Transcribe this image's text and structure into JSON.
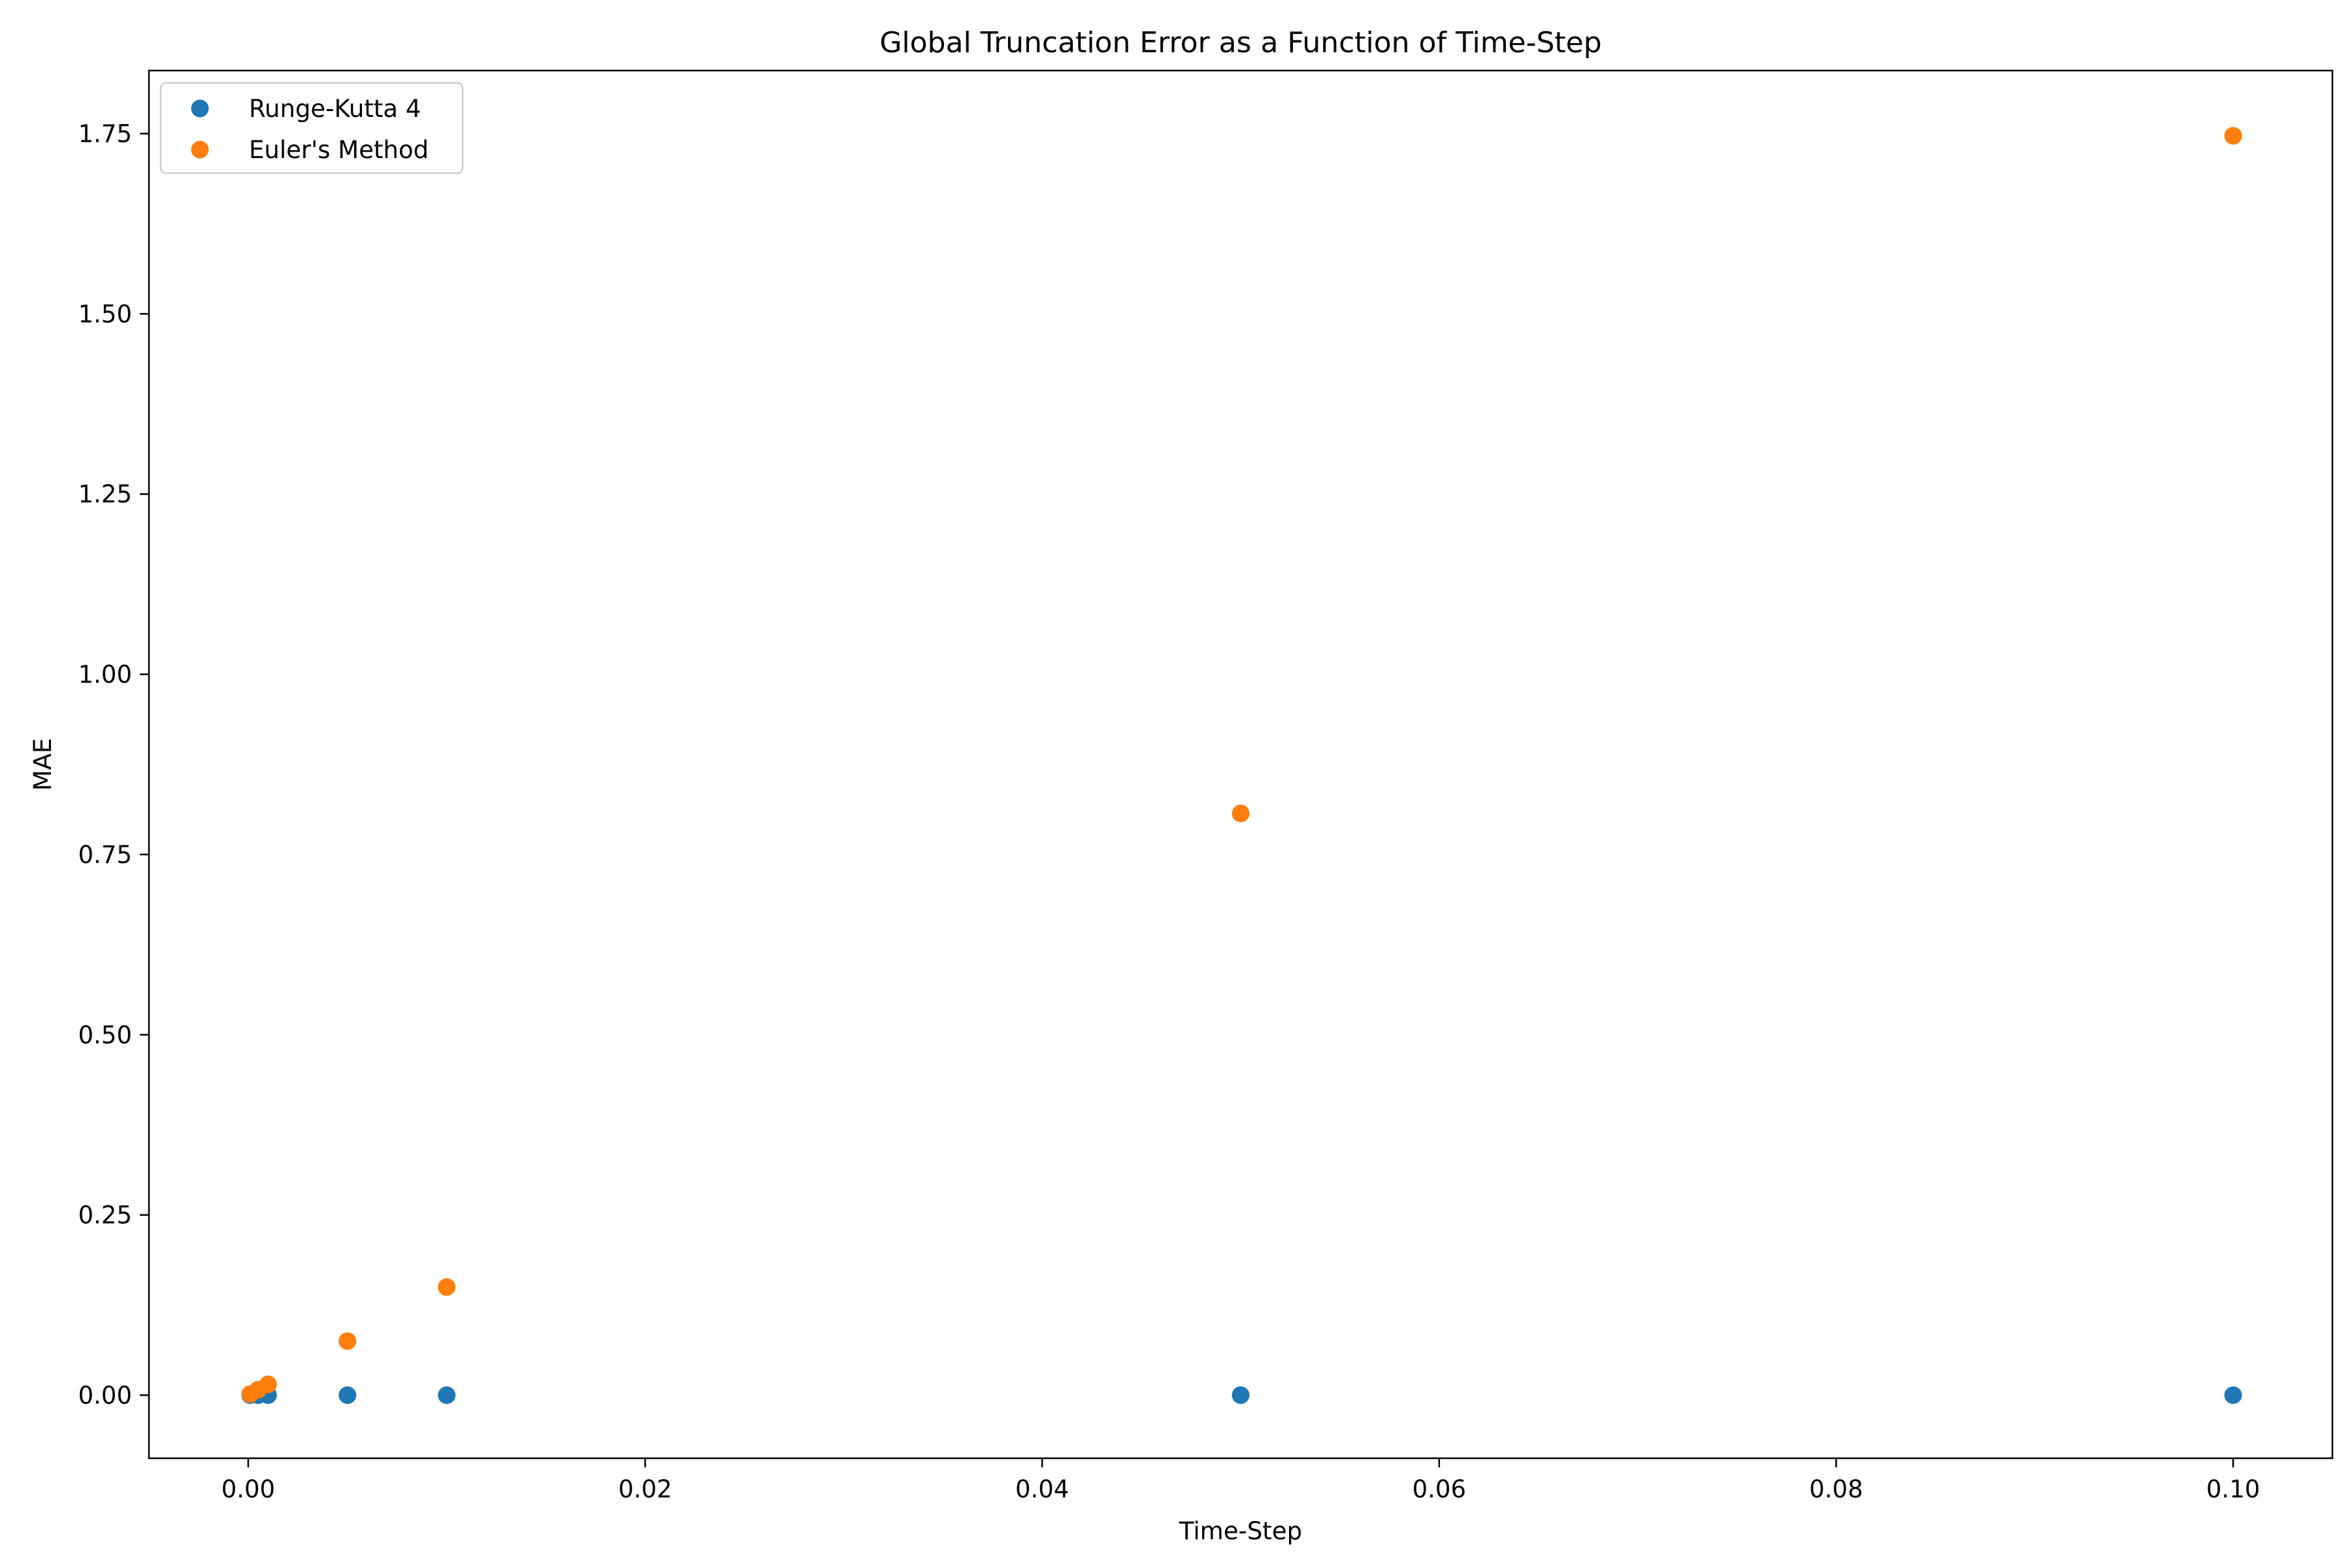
{
  "chart_data": {
    "type": "scatter",
    "title": "Global Truncation Error as a Function of Time-Step",
    "xlabel": "Time-Step",
    "ylabel": "MAE",
    "xlim": [
      -0.005,
      0.105
    ],
    "ylim": [
      -0.0875,
      1.8375
    ],
    "xticks": [
      0.0,
      0.02,
      0.04,
      0.06,
      0.08,
      0.1
    ],
    "xtick_labels": [
      "0.00",
      "0.02",
      "0.04",
      "0.06",
      "0.08",
      "0.10"
    ],
    "yticks": [
      0.0,
      0.25,
      0.5,
      0.75,
      1.0,
      1.25,
      1.5,
      1.75
    ],
    "ytick_labels": [
      "0.00",
      "0.25",
      "0.50",
      "0.75",
      "1.00",
      "1.25",
      "1.50",
      "1.75"
    ],
    "grid": false,
    "legend_position": "upper-left",
    "series": [
      {
        "name": "Runge-Kutta 4",
        "color": "#1f77b4",
        "x": [
          0.0001,
          0.0005,
          0.001,
          0.005,
          0.01,
          0.05,
          0.1
        ],
        "y": [
          0.0,
          0.0,
          0.0,
          0.0,
          0.0,
          0.0,
          0.0
        ]
      },
      {
        "name": "Euler's Method",
        "color": "#ff7f0e",
        "x": [
          0.0001,
          0.0005,
          0.001,
          0.005,
          0.01,
          0.05,
          0.1
        ],
        "y": [
          0.0015,
          0.0075,
          0.015,
          0.075,
          0.15,
          0.807,
          1.747
        ]
      }
    ]
  }
}
